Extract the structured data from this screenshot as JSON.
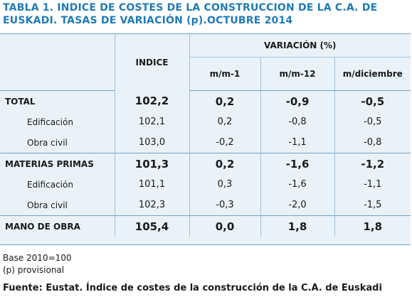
{
  "title": {
    "line1": "TABLA 1. INDICE DE COSTES DE LA CONSTRUCCION DE LA C.A. DE",
    "line2": "EUSKADI. TASAS DE VARIACIÓN (p).OCTUBRE 2014"
  },
  "table": {
    "header": {
      "indice": "INDICE",
      "variacion": "VARIACIÓN (%)",
      "cols": [
        "m/m-1",
        "m/m-12",
        "m/diciembre"
      ]
    },
    "rows": [
      {
        "label": "TOTAL",
        "indice": "102,2",
        "m1": "0,2",
        "m12": "-0,9",
        "mdic": "-0,5"
      },
      {
        "label": "Edificación",
        "indice": "102,1",
        "m1": "0,2",
        "m12": "-0,8",
        "mdic": "-0,5"
      },
      {
        "label": "Obra civil",
        "indice": "103,0",
        "m1": "-0,2",
        "m12": "-1,1",
        "mdic": "-0,8"
      },
      {
        "label": "MATERIAS PRIMAS",
        "indice": "101,3",
        "m1": "0,2",
        "m12": "-1,6",
        "mdic": "-1,2"
      },
      {
        "label": "Edificación",
        "indice": "101,1",
        "m1": "0,3",
        "m12": "-1,6",
        "mdic": "-1,1"
      },
      {
        "label": "Obra civil",
        "indice": "102,3",
        "m1": "-0,3",
        "m12": "-2,0",
        "mdic": "-1,5"
      },
      {
        "label": "MANO DE OBRA",
        "indice": "105,4",
        "m1": "0,0",
        "m12": "1,8",
        "mdic": "1,8"
      }
    ]
  },
  "notes": [
    "Base 2010=100",
    "(p) provisional"
  ],
  "source": "Fuente: Eustat. Índice de costes de la construcción de la C.A. de Euskadi",
  "colors": {
    "title": "#1f7ab8",
    "table_bg": "#e8f2f8",
    "rule": "#6fa2c9"
  }
}
